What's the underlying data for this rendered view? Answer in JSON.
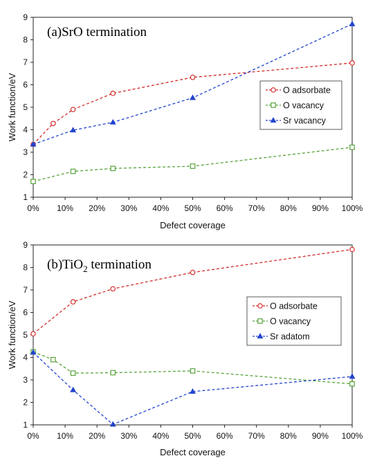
{
  "chart_data": [
    {
      "type": "line",
      "title": "(a)SrO termination",
      "title_parts": {
        "before": "(a)SrO termination",
        "sub": "",
        "after": ""
      },
      "xlabel": "Defect coverage",
      "ylabel": "Work function/eV",
      "xlim": [
        0,
        100
      ],
      "ylim": [
        1,
        9
      ],
      "x_ticks": [
        "0%",
        "10%",
        "20%",
        "30%",
        "40%",
        "50%",
        "60%",
        "70%",
        "80%",
        "90%",
        "100%"
      ],
      "y_ticks": [
        "1",
        "2",
        "3",
        "4",
        "5",
        "6",
        "7",
        "8",
        "9"
      ],
      "grid": false,
      "legend_position": "right",
      "series": [
        {
          "name": "O adsorbate",
          "color": "#d42a2a",
          "marker": "circle",
          "x": [
            0,
            6.25,
            12.5,
            25,
            50,
            100
          ],
          "y": [
            3.35,
            4.28,
            4.9,
            5.62,
            6.33,
            6.97
          ]
        },
        {
          "name": "O vacancy",
          "color": "#56a23a",
          "marker": "square",
          "x": [
            0,
            12.5,
            25,
            50,
            100
          ],
          "y": [
            1.7,
            2.15,
            2.28,
            2.38,
            3.22
          ]
        },
        {
          "name": "Sr vacancy",
          "color": "#2244cc",
          "marker": "triangle",
          "x": [
            0,
            12.5,
            25,
            50,
            100
          ],
          "y": [
            3.35,
            3.98,
            4.33,
            5.42,
            8.7
          ]
        }
      ]
    },
    {
      "type": "line",
      "title": "(b)TiO2 termination",
      "title_parts": {
        "before": "(b)TiO",
        "sub": "2",
        "after": " termination"
      },
      "xlabel": "Defect coverage",
      "ylabel": "Work function/eV",
      "xlim": [
        0,
        100
      ],
      "ylim": [
        1,
        9
      ],
      "x_ticks": [
        "0%",
        "10%",
        "20%",
        "30%",
        "40%",
        "50%",
        "60%",
        "70%",
        "80%",
        "90%",
        "100%"
      ],
      "y_ticks": [
        "1",
        "2",
        "3",
        "4",
        "5",
        "6",
        "7",
        "8",
        "9"
      ],
      "grid": false,
      "legend_position": "right",
      "series": [
        {
          "name": "O adsorbate",
          "color": "#d42a2a",
          "marker": "circle",
          "x": [
            0,
            12.5,
            25,
            50,
            100
          ],
          "y": [
            5.05,
            6.47,
            7.05,
            7.78,
            8.8
          ]
        },
        {
          "name": "O vacancy",
          "color": "#56a23a",
          "marker": "square",
          "x": [
            0,
            6.25,
            12.5,
            25,
            50,
            100
          ],
          "y": [
            4.25,
            3.9,
            3.3,
            3.32,
            3.4,
            2.82
          ]
        },
        {
          "name": "Sr adatom",
          "color": "#2244cc",
          "marker": "triangle",
          "x": [
            0,
            12.5,
            25,
            50,
            100
          ],
          "y": [
            4.22,
            2.55,
            1.02,
            2.48,
            3.15
          ]
        }
      ]
    }
  ]
}
